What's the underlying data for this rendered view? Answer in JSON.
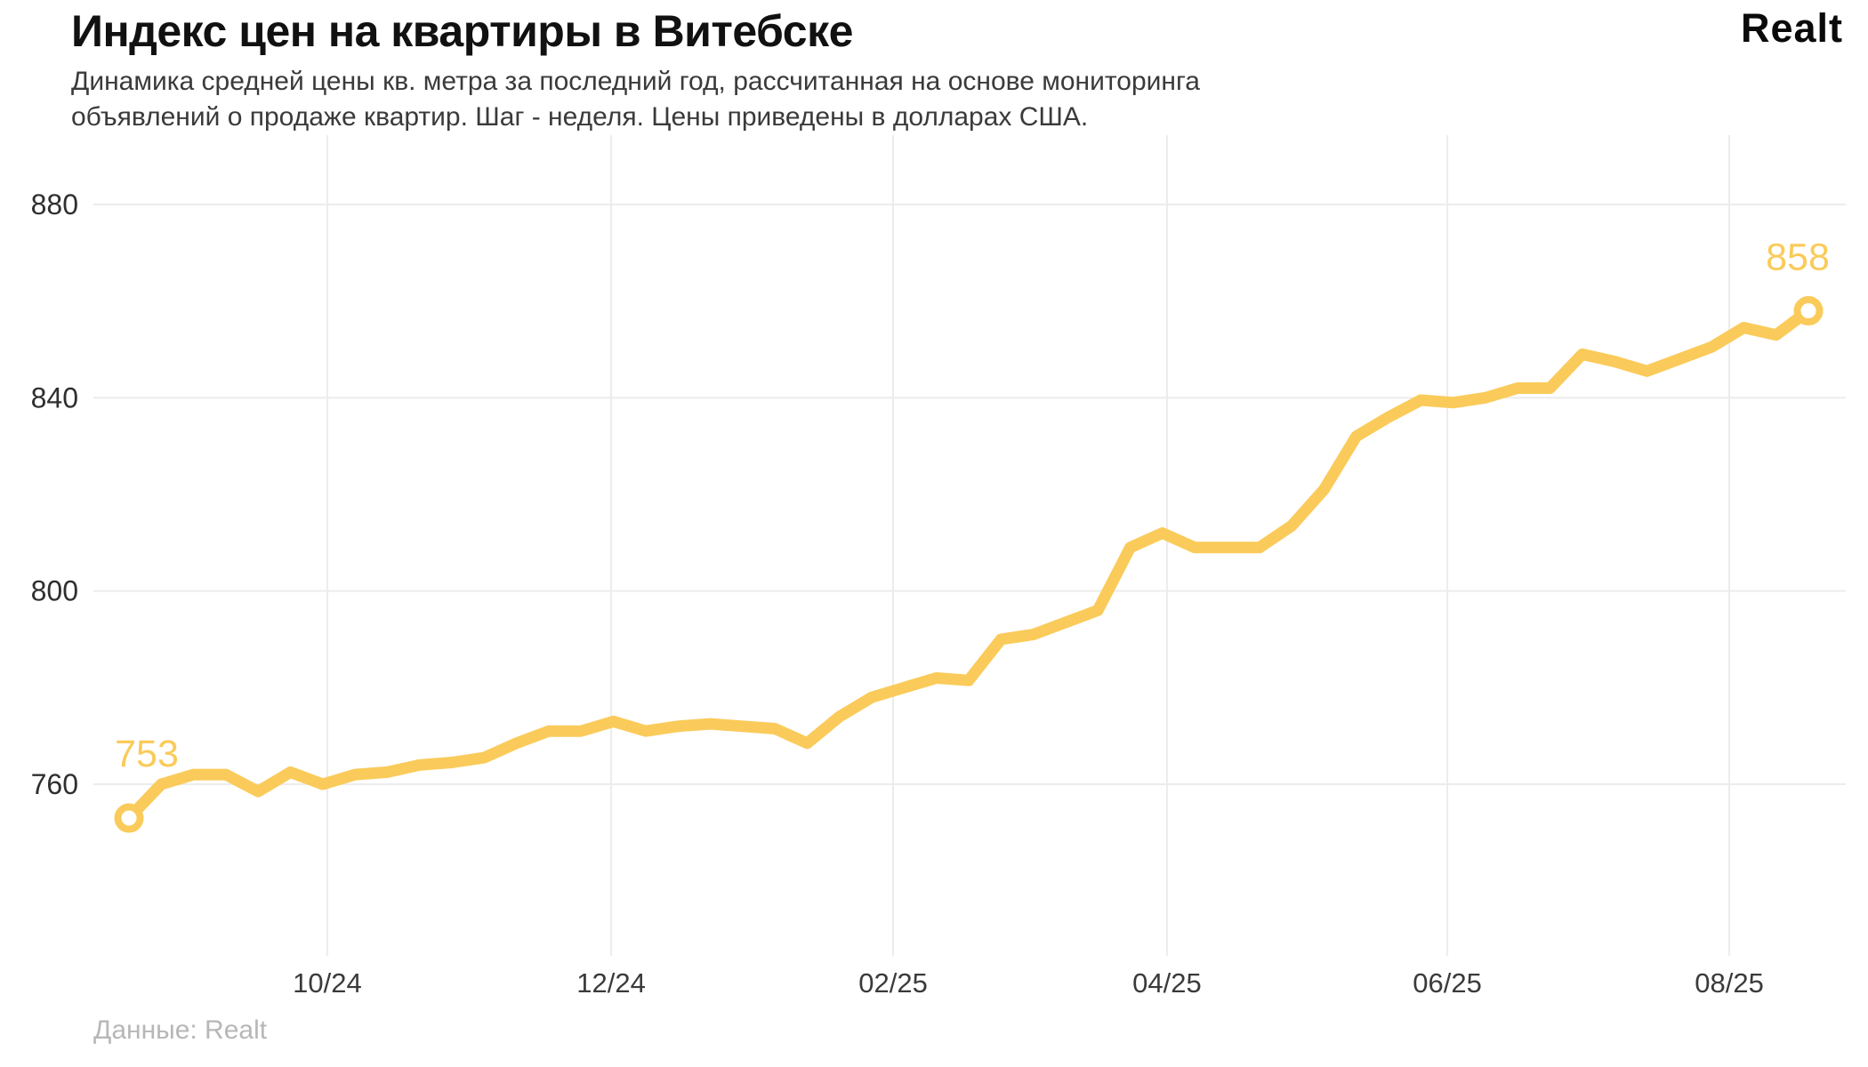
{
  "header": {
    "title": "Индекс цен на квартиры в Витебске",
    "subtitle_lines": [
      "Динамика средней цены кв. метра за последний год, рассчитанная на основе мониторинга",
      "объявлений о продаже квартир. Шаг - неделя. Цены приведены в долларах США."
    ],
    "logo_text": "Realt"
  },
  "footer": {
    "source_label": "Данные: Realt"
  },
  "chart_data": {
    "type": "line",
    "title": "Индекс цен на квартиры в Витебске",
    "unit": "USD за кв. метр",
    "step": "неделя",
    "values": [
      753,
      760,
      762,
      762,
      758.5,
      762.5,
      760,
      762,
      762.5,
      764,
      764.5,
      765.5,
      768.5,
      771,
      771,
      773,
      771,
      772,
      772.5,
      772,
      771.5,
      768.5,
      774,
      778,
      780,
      782,
      781.5,
      790,
      791,
      793.5,
      796,
      809,
      812,
      809,
      809,
      809,
      813.5,
      821,
      832,
      836,
      839.5,
      839,
      840,
      842,
      842,
      849,
      847.5,
      845.5,
      848,
      850.5,
      854.5,
      853,
      858
    ],
    "start_value": 753,
    "end_value": 858,
    "point_labels": [
      {
        "text": "753",
        "index": 0
      },
      {
        "text": "858",
        "index": 52
      }
    ],
    "y_axis": {
      "ticks": [
        760,
        800,
        840,
        880
      ],
      "visible_range": [
        725,
        894
      ],
      "grid": true
    },
    "x_axis": {
      "ticks": [
        {
          "label": "10/24",
          "week": 6.14
        },
        {
          "label": "12/24",
          "week": 14.93
        },
        {
          "label": "02/25",
          "week": 23.66
        },
        {
          "label": "04/25",
          "week": 32.14
        },
        {
          "label": "06/25",
          "week": 40.82
        },
        {
          "label": "08/25",
          "week": 49.55
        }
      ],
      "grid": true
    },
    "legend": "none",
    "colors": {
      "line": "#FACB5A",
      "grid": "#ececec",
      "y_tick_text": "#2f2f2f",
      "x_tick_text": "#3a3a3a",
      "value_label": "#FACB5A",
      "marker_fill": "#ffffff"
    }
  }
}
